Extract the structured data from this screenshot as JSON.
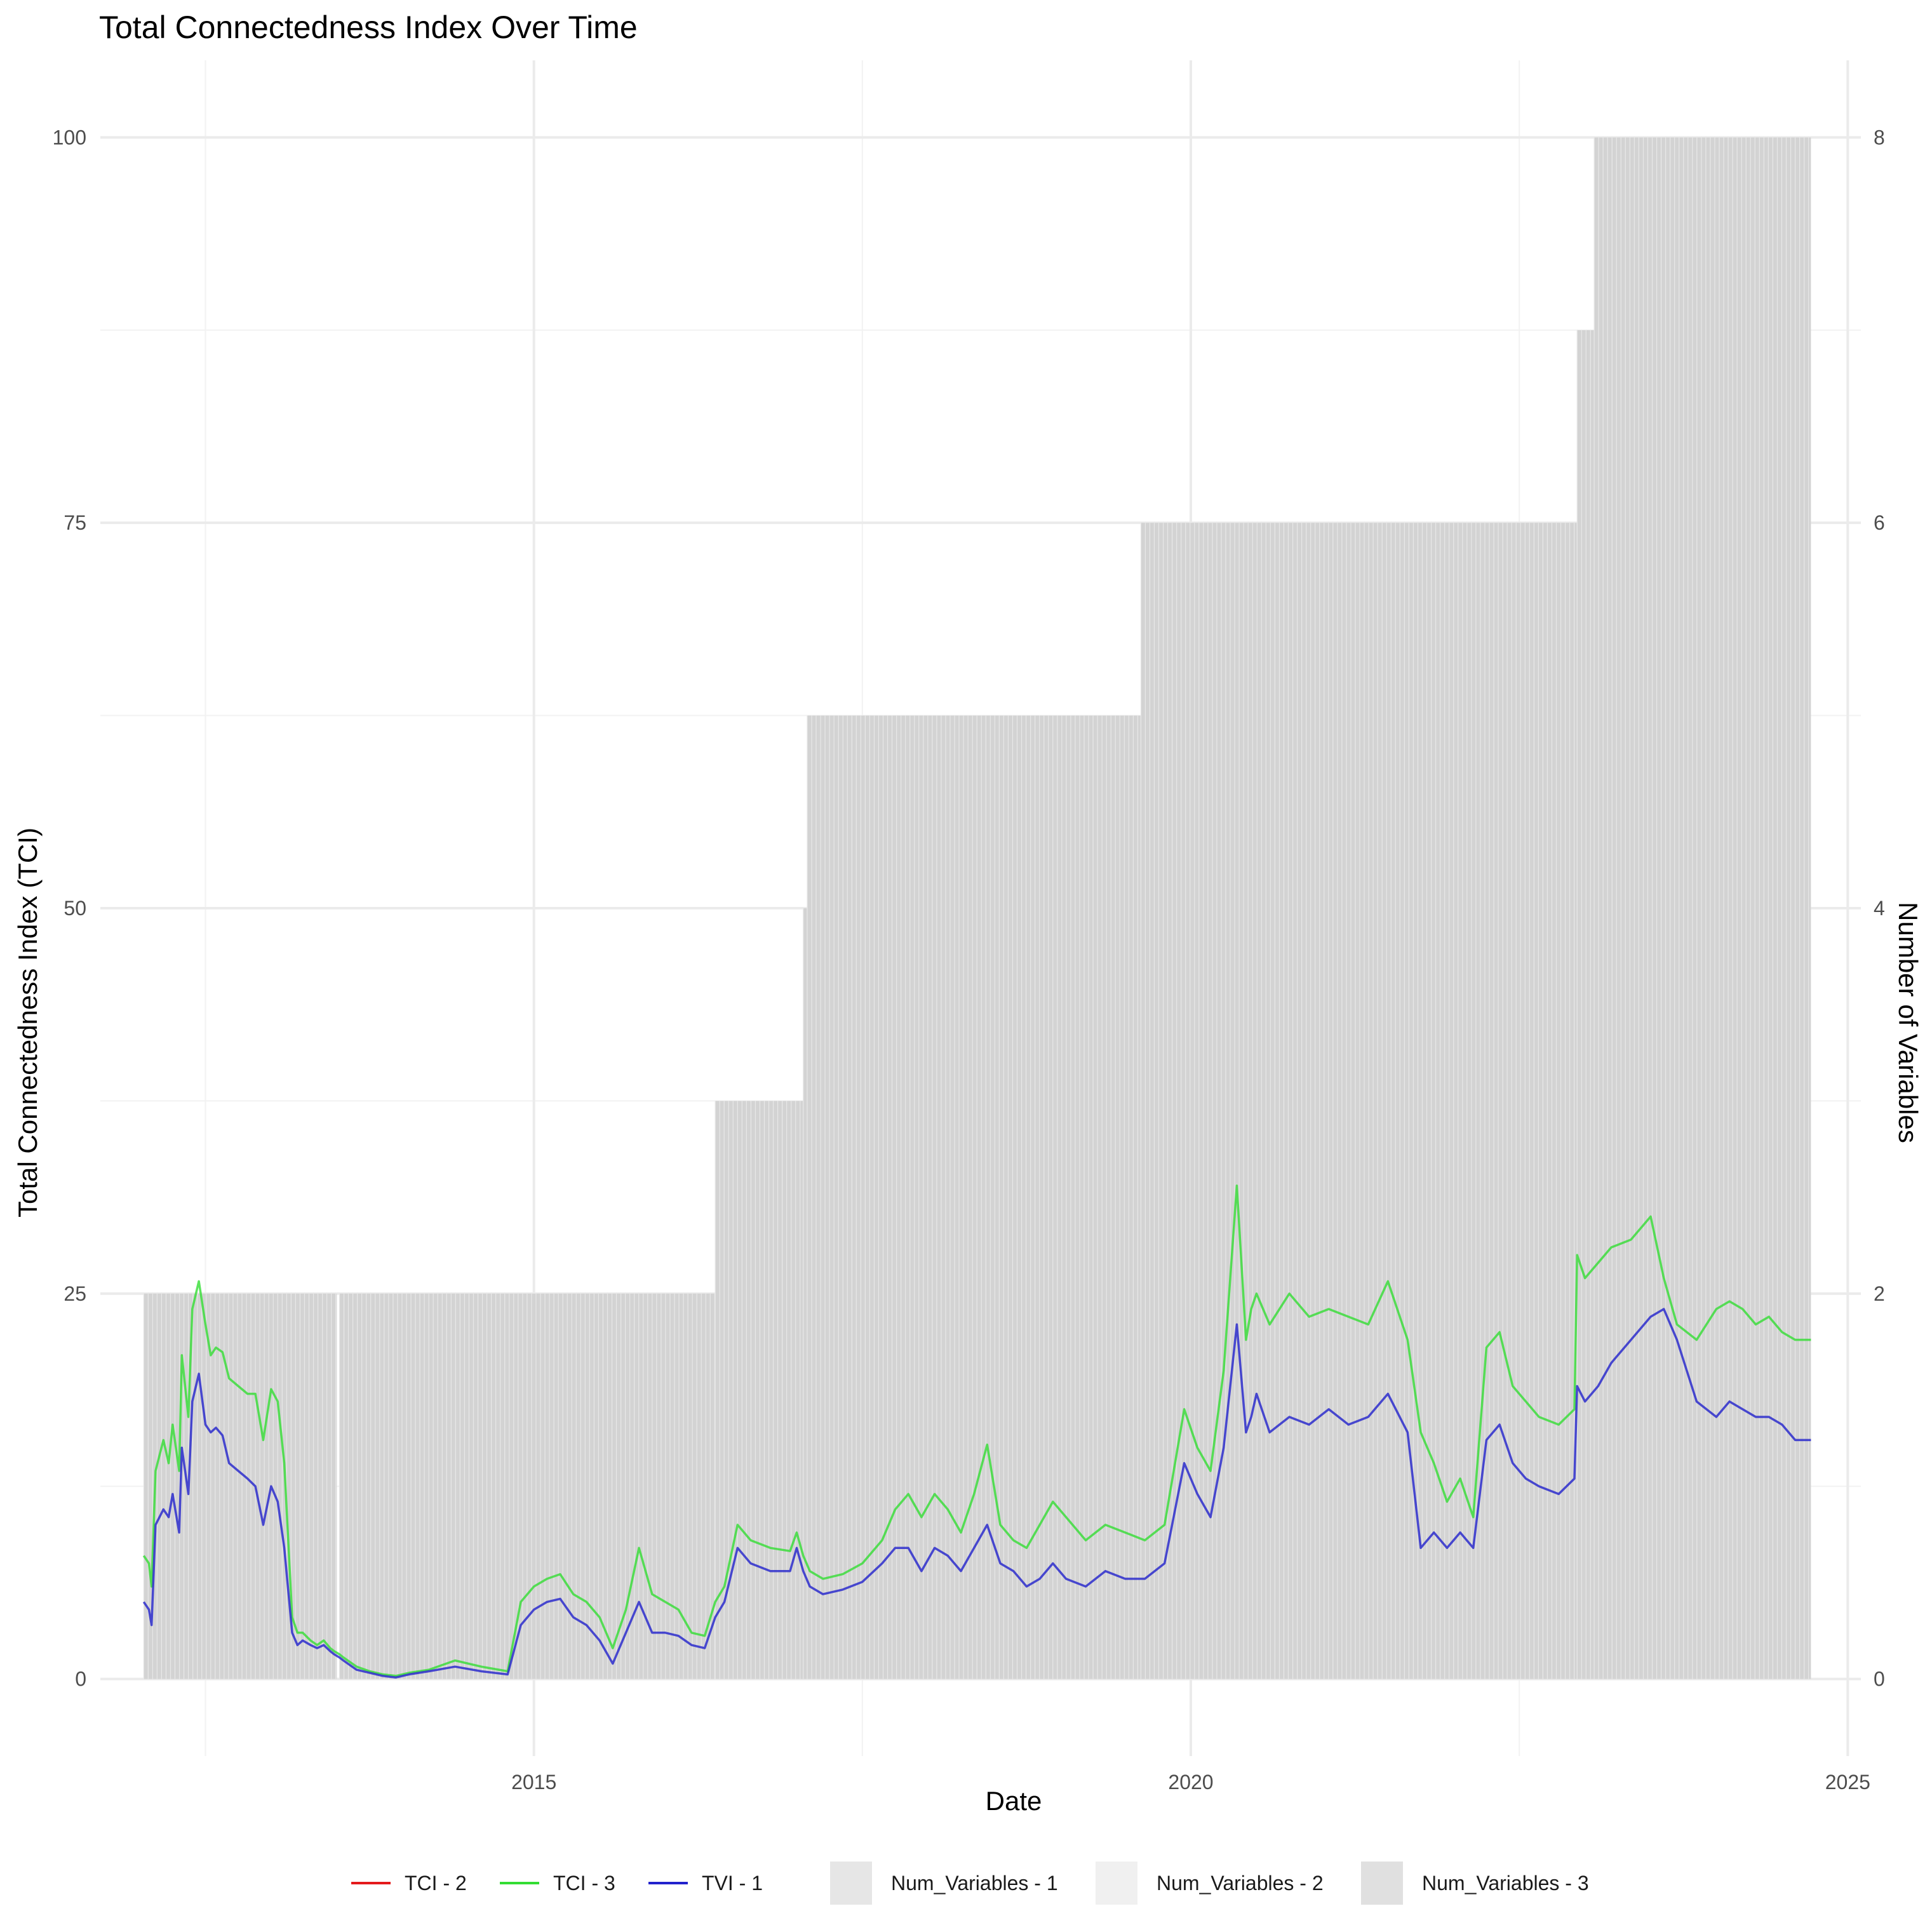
{
  "chart_data": {
    "type": "line",
    "title": "Total Connectedness Index Over Time",
    "xlabel": "Date",
    "ylabel": "Total Connectedness Index (TCI)",
    "y2label": "Number of Variables",
    "x_axis": {
      "type": "time",
      "range": [
        2011.7,
        2025.1
      ],
      "ticks": [
        2015,
        2020,
        2025
      ],
      "tick_labels": [
        "2015",
        "2020",
        "2025"
      ],
      "minor_ticks": [
        2012.5,
        2017.5,
        2022.5
      ]
    },
    "y_axis": {
      "range": [
        -5,
        105
      ],
      "ticks": [
        0,
        25,
        50,
        75,
        100
      ],
      "tick_labels": [
        "0",
        "25",
        "50",
        "75",
        "100"
      ],
      "minor_ticks": [
        12.5,
        37.5,
        62.5,
        87.5
      ]
    },
    "y2_axis": {
      "range": [
        -0.4,
        8.4
      ],
      "ticks": [
        0,
        2,
        4,
        6,
        8
      ],
      "tick_labels": [
        "0",
        "2",
        "4",
        "6",
        "8"
      ]
    },
    "grid": true,
    "legend_position": "bottom",
    "colors": {
      "tci2": "#e41a1c",
      "tci3": "#33dd33",
      "tvi1": "#2222cc",
      "bars": "#d3d3d3"
    },
    "bar_steps": [
      {
        "x_start": 2012.03,
        "x_end": 2013.5,
        "value": 2
      },
      {
        "x_start": 2013.52,
        "x_end": 2016.38,
        "value": 2
      },
      {
        "x_start": 2016.38,
        "x_end": 2017.05,
        "value": 3
      },
      {
        "x_start": 2017.05,
        "x_end": 2017.08,
        "value": 4
      },
      {
        "x_start": 2017.08,
        "x_end": 2019.62,
        "value": 5
      },
      {
        "x_start": 2019.62,
        "x_end": 2022.94,
        "value": 6
      },
      {
        "x_start": 2022.94,
        "x_end": 2023.07,
        "value": 7
      },
      {
        "x_start": 2023.07,
        "x_end": 2024.72,
        "value": 8
      }
    ],
    "series": [
      {
        "name": "TCI - 3",
        "color": "#33dd33",
        "x": [
          2012.03,
          2012.07,
          2012.09,
          2012.12,
          2012.18,
          2012.22,
          2012.25,
          2012.3,
          2012.32,
          2012.37,
          2012.4,
          2012.45,
          2012.5,
          2012.54,
          2012.58,
          2012.63,
          2012.68,
          2012.75,
          2012.82,
          2012.88,
          2012.94,
          2013.0,
          2013.05,
          2013.1,
          2013.16,
          2013.2,
          2013.24,
          2013.3,
          2013.35,
          2013.4,
          2013.45,
          2013.48,
          2013.52,
          2013.55,
          2013.65,
          2013.75,
          2013.85,
          2013.95,
          2014.05,
          2014.2,
          2014.4,
          2014.6,
          2014.8,
          2014.9,
          2015.0,
          2015.1,
          2015.2,
          2015.3,
          2015.4,
          2015.5,
          2015.6,
          2015.7,
          2015.8,
          2015.9,
          2016.0,
          2016.1,
          2016.2,
          2016.3,
          2016.38,
          2016.45,
          2016.55,
          2016.65,
          2016.8,
          2016.95,
          2017.0,
          2017.05,
          2017.1,
          2017.2,
          2017.35,
          2017.5,
          2017.65,
          2017.75,
          2017.85,
          2017.95,
          2018.05,
          2018.15,
          2018.25,
          2018.35,
          2018.45,
          2018.55,
          2018.65,
          2018.75,
          2018.85,
          2018.95,
          2019.05,
          2019.2,
          2019.35,
          2019.5,
          2019.65,
          2019.8,
          2019.95,
          2020.05,
          2020.15,
          2020.25,
          2020.35,
          2020.42,
          2020.46,
          2020.5,
          2020.6,
          2020.75,
          2020.9,
          2021.05,
          2021.2,
          2021.35,
          2021.5,
          2021.65,
          2021.75,
          2021.85,
          2021.95,
          2022.05,
          2022.15,
          2022.25,
          2022.35,
          2022.45,
          2022.55,
          2022.65,
          2022.8,
          2022.92,
          2022.94,
          2023.0,
          2023.1,
          2023.2,
          2023.35,
          2023.5,
          2023.6,
          2023.7,
          2023.85,
          2024.0,
          2024.1,
          2024.2,
          2024.3,
          2024.4,
          2024.5,
          2024.6,
          2024.72
        ],
        "y": [
          8,
          7.5,
          6,
          13.5,
          15.5,
          14,
          16.5,
          13.5,
          21,
          17,
          24,
          25.8,
          23,
          21,
          21.5,
          21.2,
          19.5,
          19,
          18.5,
          18.5,
          15.5,
          18.8,
          18,
          14,
          4,
          3,
          3,
          2.5,
          2.2,
          2.5,
          2,
          1.8,
          1.6,
          1.4,
          0.8,
          0.5,
          0.3,
          0.2,
          0.4,
          0.6,
          1.2,
          0.8,
          0.5,
          5,
          6,
          6.5,
          6.8,
          5.5,
          5,
          4,
          2,
          4.5,
          8.5,
          5.5,
          5,
          4.5,
          3,
          2.8,
          5,
          6,
          10,
          9,
          8.5,
          8.3,
          9.5,
          8,
          7,
          6.5,
          6.8,
          7.5,
          9,
          11,
          12,
          10.5,
          12,
          11,
          9.5,
          12,
          15.2,
          10,
          9,
          8.5,
          10,
          11.5,
          10.5,
          9,
          10,
          9.5,
          9,
          10,
          17.5,
          15,
          13.5,
          20,
          32,
          22,
          24,
          25,
          23,
          25,
          23.5,
          24,
          23.5,
          23,
          25.8,
          22,
          16,
          14,
          11.5,
          13,
          10.5,
          21.5,
          22.5,
          19,
          18,
          17,
          16.5,
          17.5,
          27.5,
          26,
          27,
          28,
          28.5,
          30,
          26,
          23,
          22,
          24,
          24.5,
          24,
          23,
          23.5,
          22.5,
          22,
          22
        ]
      },
      {
        "name": "TVI - 1",
        "color": "#2222cc",
        "x": [
          2012.03,
          2012.07,
          2012.09,
          2012.12,
          2012.18,
          2012.22,
          2012.25,
          2012.3,
          2012.32,
          2012.37,
          2012.4,
          2012.45,
          2012.5,
          2012.54,
          2012.58,
          2012.63,
          2012.68,
          2012.75,
          2012.82,
          2012.88,
          2012.94,
          2013.0,
          2013.05,
          2013.1,
          2013.16,
          2013.2,
          2013.24,
          2013.3,
          2013.35,
          2013.4,
          2013.45,
          2013.48,
          2013.52,
          2013.55,
          2013.65,
          2013.75,
          2013.85,
          2013.95,
          2014.05,
          2014.2,
          2014.4,
          2014.6,
          2014.8,
          2014.9,
          2015.0,
          2015.1,
          2015.2,
          2015.3,
          2015.4,
          2015.5,
          2015.6,
          2015.7,
          2015.8,
          2015.9,
          2016.0,
          2016.1,
          2016.2,
          2016.3,
          2016.38,
          2016.45,
          2016.55,
          2016.65,
          2016.8,
          2016.95,
          2017.0,
          2017.05,
          2017.1,
          2017.2,
          2017.35,
          2017.5,
          2017.65,
          2017.75,
          2017.85,
          2017.95,
          2018.05,
          2018.15,
          2018.25,
          2018.35,
          2018.45,
          2018.55,
          2018.65,
          2018.75,
          2018.85,
          2018.95,
          2019.05,
          2019.2,
          2019.35,
          2019.5,
          2019.65,
          2019.8,
          2019.95,
          2020.05,
          2020.15,
          2020.25,
          2020.35,
          2020.42,
          2020.46,
          2020.5,
          2020.6,
          2020.75,
          2020.9,
          2021.05,
          2021.2,
          2021.35,
          2021.5,
          2021.65,
          2021.75,
          2021.85,
          2021.95,
          2022.05,
          2022.15,
          2022.25,
          2022.35,
          2022.45,
          2022.55,
          2022.65,
          2022.8,
          2022.92,
          2022.94,
          2023.0,
          2023.1,
          2023.2,
          2023.35,
          2023.5,
          2023.6,
          2023.7,
          2023.85,
          2024.0,
          2024.1,
          2024.2,
          2024.3,
          2024.4,
          2024.5,
          2024.6,
          2024.72
        ],
        "y": [
          5,
          4.5,
          3.5,
          10,
          11,
          10.5,
          12,
          9.5,
          15,
          12,
          18,
          19.8,
          16.5,
          16,
          16.3,
          15.8,
          14,
          13.5,
          13,
          12.5,
          10,
          12.5,
          11.5,
          8.5,
          3,
          2.2,
          2.5,
          2.2,
          2,
          2.2,
          1.8,
          1.6,
          1.4,
          1.2,
          0.6,
          0.4,
          0.2,
          0.1,
          0.3,
          0.5,
          0.8,
          0.5,
          0.3,
          3.5,
          4.5,
          5,
          5.2,
          4,
          3.5,
          2.5,
          1,
          3,
          5,
          3,
          3,
          2.8,
          2.2,
          2,
          4,
          5,
          8.5,
          7.5,
          7,
          7,
          8.5,
          7,
          6,
          5.5,
          5.8,
          6.3,
          7.5,
          8.5,
          8.5,
          7,
          8.5,
          8,
          7,
          8.5,
          10,
          7.5,
          7,
          6,
          6.5,
          7.5,
          6.5,
          6,
          7,
          6.5,
          6.5,
          7.5,
          14,
          12,
          10.5,
          15,
          23,
          16,
          17,
          18.5,
          16,
          17,
          16.5,
          17.5,
          16.5,
          17,
          18.5,
          16,
          8.5,
          9.5,
          8.5,
          9.5,
          8.5,
          15.5,
          16.5,
          14,
          13,
          12.5,
          12,
          13,
          19,
          18,
          19,
          20.5,
          22,
          23.5,
          24,
          22,
          18,
          17,
          18,
          17.5,
          17,
          17,
          16.5,
          15.5,
          15.5
        ]
      },
      {
        "name": "TCI - 2",
        "color": "#e41a1c",
        "x": [],
        "y": []
      }
    ],
    "legend": [
      {
        "label": "TCI - 2",
        "kind": "line",
        "color": "#e41a1c"
      },
      {
        "label": "TCI - 3",
        "kind": "line",
        "color": "#33dd33"
      },
      {
        "label": "TVI - 1",
        "kind": "line",
        "color": "#2222cc"
      },
      {
        "label": "Num_Variables - 1",
        "kind": "box",
        "color": "#e6e6e6"
      },
      {
        "label": "Num_Variables - 2",
        "kind": "box",
        "color": "#f0f0f0"
      },
      {
        "label": "Num_Variables - 3",
        "kind": "box",
        "color": "#e0e0e0"
      }
    ]
  }
}
